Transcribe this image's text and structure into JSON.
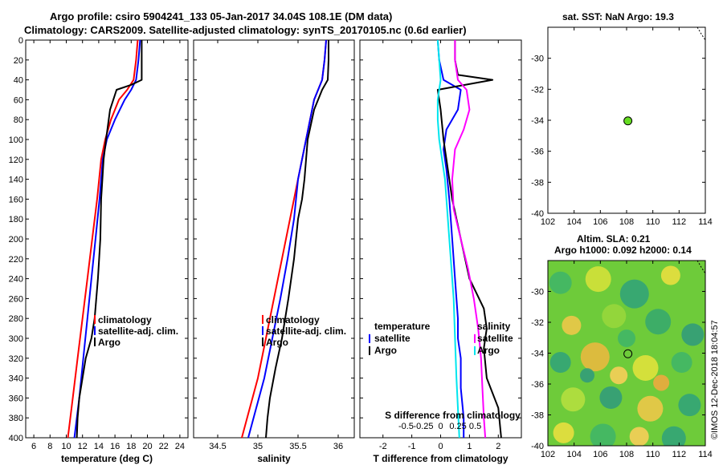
{
  "header": {
    "line1": "Argo profile: csiro 5904241_133 05-Jan-2017 34.04S 108.1E (DM data)",
    "line2": "Climatology: CARS2009. Satellite-adjusted climatology: synTS_20170105.nc (0.6d earlier)"
  },
  "map_top": {
    "title": "sat. SST: NaN Argo: 19.3"
  },
  "map_bottom": {
    "title1": "Altim. SLA: 0.21",
    "title2": "Argo h1000: 0.092 h2000: 0.14"
  },
  "watermark": "©IMOS 12-Dec-2018 18:04:57",
  "colors": {
    "climatology": "#ff0000",
    "satellite": "#0000ff",
    "argo": "#000000",
    "salinity_diff": "#ff00ff",
    "cyan": "#00e5ee",
    "marker": "#66dd22"
  },
  "chart_data": [
    {
      "id": "temperature",
      "type": "line",
      "xlabel": "temperature (deg C)",
      "ylabel": "",
      "xlim": [
        5,
        25
      ],
      "ylim": [
        400,
        0
      ],
      "xticks": [
        6,
        8,
        10,
        12,
        14,
        16,
        18,
        20,
        22,
        24
      ],
      "yticks": [
        0,
        20,
        40,
        60,
        80,
        100,
        120,
        140,
        160,
        180,
        200,
        220,
        240,
        260,
        280,
        300,
        320,
        340,
        360,
        380,
        400
      ],
      "legend": [
        "climatology",
        "satellite-adj. clim.",
        "Argo"
      ],
      "series": [
        {
          "name": "climatology",
          "color": "#ff0000",
          "x": [
            18.8,
            18.6,
            18.3,
            17.5,
            16.5,
            15.5,
            14.8,
            14.3,
            13.8,
            13.2,
            12.6,
            12.0,
            11.4,
            10.8,
            10.2
          ],
          "y": [
            0,
            20,
            40,
            50,
            60,
            80,
            100,
            120,
            160,
            200,
            240,
            280,
            320,
            360,
            400
          ]
        },
        {
          "name": "satellite-adj. clim.",
          "color": "#0000ff",
          "x": [
            19.1,
            18.9,
            18.6,
            18.0,
            17.2,
            16.0,
            15.0,
            14.5,
            14.1,
            13.6,
            13.1,
            12.6,
            12.1,
            11.6,
            11.0
          ],
          "y": [
            0,
            20,
            40,
            50,
            60,
            80,
            100,
            120,
            160,
            200,
            240,
            280,
            320,
            360,
            400
          ]
        },
        {
          "name": "Argo",
          "color": "#000000",
          "x": [
            19.3,
            19.3,
            19.3,
            18.0,
            16.2,
            15.4,
            14.9,
            14.6,
            14.3,
            14.2,
            13.9,
            13.5,
            13.1,
            12.4,
            12.0,
            11.6,
            11.4,
            11.3
          ],
          "y": [
            0,
            20,
            40,
            45,
            50,
            70,
            100,
            120,
            160,
            200,
            240,
            280,
            300,
            320,
            340,
            360,
            380,
            400
          ]
        }
      ]
    },
    {
      "id": "salinity",
      "type": "line",
      "xlabel": "salinity",
      "xlim": [
        34.2,
        36.2
      ],
      "ylim": [
        400,
        0
      ],
      "xticks": [
        34.5,
        35,
        35.5,
        36
      ],
      "xticklabels": [
        "34.5",
        "35",
        "35.5",
        "36"
      ],
      "legend": [
        "climatology",
        "satellite-adj. clim.",
        "Argo"
      ],
      "series": [
        {
          "name": "climatology",
          "color": "#ff0000",
          "x": [
            35.85,
            35.83,
            35.8,
            35.7,
            35.65,
            35.6,
            35.55,
            35.5,
            35.4,
            35.3,
            35.2,
            35.1,
            35.0,
            34.9,
            34.8
          ],
          "y": [
            0,
            20,
            40,
            60,
            80,
            100,
            120,
            140,
            180,
            220,
            260,
            300,
            340,
            370,
            400
          ]
        },
        {
          "name": "satellite-adj. clim.",
          "color": "#0000ff",
          "x": [
            35.85,
            35.83,
            35.8,
            35.7,
            35.65,
            35.6,
            35.55,
            35.5,
            35.45,
            35.37,
            35.28,
            35.18,
            35.08,
            34.98,
            34.88
          ],
          "y": [
            0,
            20,
            40,
            60,
            80,
            100,
            120,
            140,
            180,
            220,
            260,
            300,
            340,
            370,
            400
          ]
        },
        {
          "name": "Argo",
          "color": "#000000",
          "x": [
            35.88,
            35.88,
            35.87,
            35.8,
            35.7,
            35.62,
            35.6,
            35.58,
            35.55,
            35.5,
            35.45,
            35.38,
            35.3,
            35.22,
            35.15,
            35.12,
            35.1
          ],
          "y": [
            0,
            20,
            40,
            50,
            70,
            100,
            120,
            140,
            160,
            180,
            220,
            260,
            300,
            330,
            360,
            380,
            400
          ]
        }
      ]
    },
    {
      "id": "difference",
      "type": "line",
      "xlabel": "T difference from climatology",
      "xlabel_top": "S difference from climatology",
      "xlim": [
        -2.8,
        2.8
      ],
      "ylim": [
        400,
        0
      ],
      "xticks": [
        -2,
        -1,
        0,
        1,
        2
      ],
      "xticklabels": [
        "-2",
        "-1",
        "0",
        "1",
        "2"
      ],
      "sticks": [
        -1.2,
        -0.6,
        0,
        0.6,
        1.2
      ],
      "sticklabels": [
        "-0.5",
        "-0.25",
        "0",
        "0.25",
        "0.5"
      ],
      "legend_left": [
        "temperature",
        "satellite",
        "Argo"
      ],
      "legend_right": [
        "salinity",
        "satellite",
        "Argo"
      ],
      "series": [
        {
          "name": "T satellite",
          "color": "#0000ff",
          "x": [
            -0.1,
            -0.05,
            0.1,
            0.7,
            0.6,
            0.2,
            0.1,
            0.2,
            0.3,
            0.4,
            0.5,
            0.6,
            0.6,
            0.7,
            0.7,
            0.8,
            0.8
          ],
          "y": [
            0,
            20,
            40,
            50,
            70,
            90,
            110,
            130,
            160,
            200,
            240,
            280,
            300,
            320,
            350,
            380,
            400
          ]
        },
        {
          "name": "T Argo",
          "color": "#000000",
          "x": [
            0.5,
            0.5,
            0.6,
            1.8,
            -0.1,
            0.0,
            0.1,
            0.2,
            0.4,
            0.7,
            1.0,
            1.5,
            1.6,
            1.5,
            1.6,
            2.0,
            2.1
          ],
          "y": [
            0,
            20,
            35,
            40,
            50,
            70,
            100,
            120,
            160,
            200,
            240,
            270,
            290,
            310,
            340,
            370,
            400
          ]
        },
        {
          "name": "S satellite",
          "color": "#00e5ee",
          "x": [
            -0.1,
            -0.05,
            0.0,
            -0.1,
            -0.1,
            -0.05,
            0.05,
            0.15,
            0.25,
            0.35,
            0.45,
            0.5,
            0.55,
            0.6,
            0.65
          ],
          "y": [
            0,
            20,
            40,
            60,
            80,
            100,
            120,
            140,
            180,
            220,
            260,
            300,
            340,
            370,
            400
          ]
        },
        {
          "name": "S Argo",
          "color": "#ff00ff",
          "x": [
            0.5,
            0.5,
            0.6,
            0.9,
            1.0,
            0.8,
            0.5,
            0.4,
            0.45,
            0.7,
            0.95,
            1.15,
            1.3,
            1.4,
            1.45,
            1.5,
            1.55
          ],
          "y": [
            0,
            20,
            40,
            50,
            70,
            90,
            110,
            140,
            170,
            200,
            230,
            260,
            290,
            320,
            350,
            380,
            400
          ]
        }
      ]
    },
    {
      "id": "map_sst",
      "type": "scatter",
      "xlim": [
        102,
        114
      ],
      "ylim": [
        -40,
        -28
      ],
      "xticks": [
        102,
        104,
        106,
        108,
        110,
        112,
        114
      ],
      "yticks": [
        -30,
        -32,
        -34,
        -36,
        -38,
        -40
      ],
      "point": {
        "lon": 108.1,
        "lat": -34.04
      }
    },
    {
      "id": "map_sla",
      "type": "heatmap",
      "xlim": [
        102,
        114
      ],
      "ylim": [
        -40,
        -28
      ],
      "xticks": [
        102,
        104,
        106,
        108,
        110,
        112,
        114
      ],
      "yticks": [
        -30,
        -32,
        -34,
        -36,
        -38,
        -40
      ],
      "point": {
        "lon": 108.1,
        "lat": -34.04
      }
    }
  ]
}
